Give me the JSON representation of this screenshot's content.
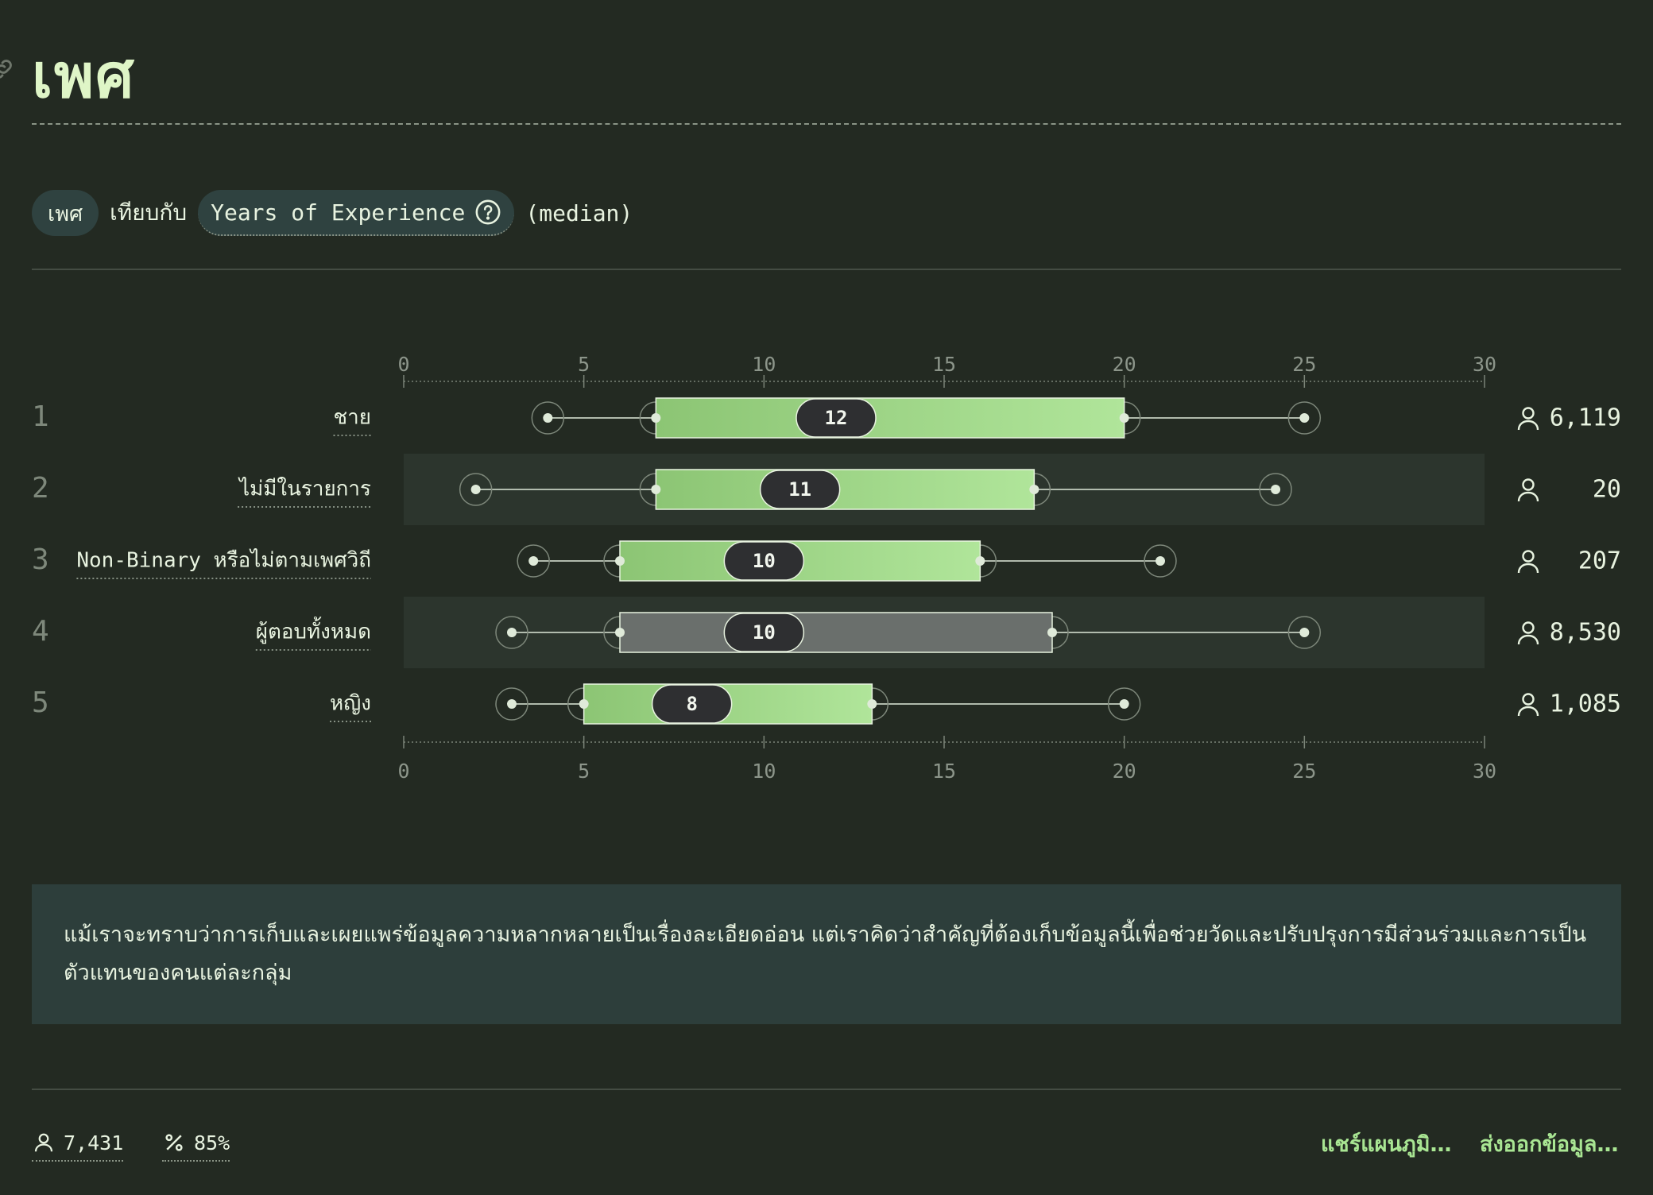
{
  "header": {
    "title": "เพศ"
  },
  "filter": {
    "group_chip": "เพศ",
    "compare_word": "เทียบกับ",
    "variable": "Years of Experience",
    "stat": "(median)"
  },
  "chart_data": {
    "type": "boxplot",
    "axis": {
      "min": 0,
      "max": 30,
      "ticks": [
        0,
        5,
        10,
        15,
        20,
        25,
        30
      ]
    },
    "rows": [
      {
        "rank": "1",
        "label": "ชาย",
        "min": 4,
        "q1": 7,
        "median": 12,
        "q3": 20,
        "max": 25,
        "count": "6,119",
        "highlight": false
      },
      {
        "rank": "2",
        "label": "ไม่มีในรายการ",
        "min": 2,
        "q1": 7,
        "median": 11,
        "q3": 17.5,
        "max": 24.2,
        "count": "20",
        "highlight": false
      },
      {
        "rank": "3",
        "label": "Non-Binary หรือไม่ตามเพศวิถี",
        "min": 3.6,
        "q1": 6,
        "median": 10,
        "q3": 16,
        "max": 21,
        "count": "207",
        "highlight": false
      },
      {
        "rank": "4",
        "label": "ผู้ตอบทั้งหมด",
        "min": 3,
        "q1": 6,
        "median": 10,
        "q3": 18,
        "max": 25,
        "count": "8,530",
        "highlight": true
      },
      {
        "rank": "5",
        "label": "หญิง",
        "min": 3,
        "q1": 5,
        "median": 8,
        "q3": 13,
        "max": 20,
        "count": "1,085",
        "highlight": false
      }
    ],
    "colors": {
      "box_start": "#8cc574",
      "box_end": "#b0e59a",
      "overall_box": "#6a6f6c",
      "badge": "#2e2f31"
    }
  },
  "note": {
    "text": "แม้เราจะทราบว่าการเก็บและเผยแพร่ข้อมูลความหลากหลายเป็นเรื่องละเอียดอ่อน แต่เราคิดว่าสำคัญที่ต้องเก็บข้อมูลนี้เพื่อช่วยวัดและปรับปรุงการมีส่วนร่วมและการเป็นตัวแทนของคนแต่ละกลุ่ม"
  },
  "footer": {
    "respondents": "7,431",
    "percent": "85%",
    "share_label": "แชร์แผนภูมิ…",
    "export_label": "ส่งออกข้อมูล…"
  }
}
